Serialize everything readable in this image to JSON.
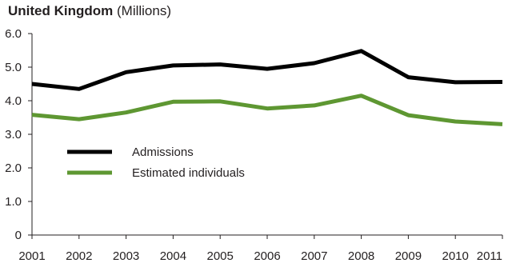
{
  "chart_data": {
    "type": "line",
    "title": "United Kingdom",
    "subtitle": "(Millions)",
    "x": [
      "2001",
      "2002",
      "2003",
      "2004",
      "2005",
      "2006",
      "2007",
      "2008",
      "2009",
      "2010",
      "2011"
    ],
    "y_ticks": [
      "0",
      "1.0",
      "2.0",
      "3.0",
      "4.0",
      "5.0",
      "6.0"
    ],
    "ylim": [
      0,
      6.0
    ],
    "grid": false,
    "legend_position": "left-middle",
    "series": [
      {
        "name": "Admissions",
        "color": "#000000",
        "values": [
          4.5,
          4.35,
          4.85,
          5.05,
          5.08,
          4.95,
          5.12,
          5.48,
          4.7,
          4.55,
          4.56
        ]
      },
      {
        "name": "Estimated individuals",
        "color": "#5e9732",
        "values": [
          3.58,
          3.45,
          3.65,
          3.97,
          3.98,
          3.77,
          3.86,
          4.15,
          3.57,
          3.38,
          3.3
        ]
      }
    ]
  }
}
